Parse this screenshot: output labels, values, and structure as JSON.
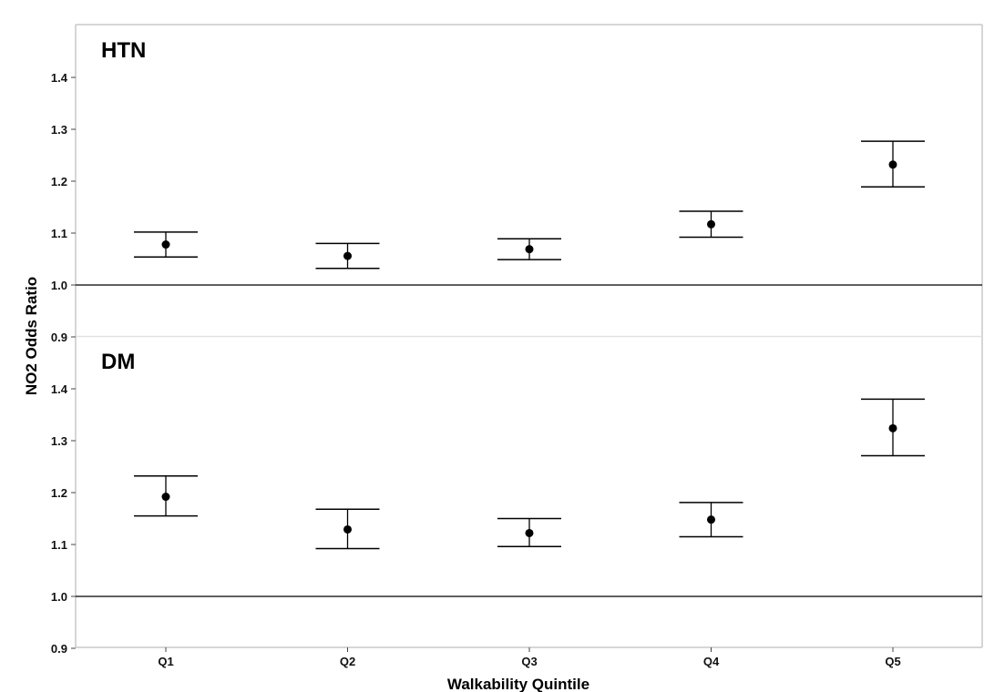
{
  "chart_data": {
    "type": "scatter",
    "subtype": "point-estimate-with-error-bars",
    "xlabel": "Walkability Quintile",
    "ylabel": "NO2 Odds Ratio",
    "categories": [
      "Q1",
      "Q2",
      "Q3",
      "Q4",
      "Q5"
    ],
    "ylim": [
      0.9,
      1.4
    ],
    "yticks": [
      "0.9",
      "1.0",
      "1.1",
      "1.2",
      "1.3",
      "1.4"
    ],
    "reference_line": 1.0,
    "grid": false,
    "legend": "none",
    "panels": [
      {
        "label": "HTN",
        "points": [
          {
            "x": "Q1",
            "y": 1.078,
            "lower": 1.054,
            "upper": 1.102
          },
          {
            "x": "Q2",
            "y": 1.056,
            "lower": 1.032,
            "upper": 1.08
          },
          {
            "x": "Q3",
            "y": 1.069,
            "lower": 1.049,
            "upper": 1.089
          },
          {
            "x": "Q4",
            "y": 1.117,
            "lower": 1.092,
            "upper": 1.142
          },
          {
            "x": "Q5",
            "y": 1.232,
            "lower": 1.189,
            "upper": 1.277
          }
        ]
      },
      {
        "label": "DM",
        "points": [
          {
            "x": "Q1",
            "y": 1.192,
            "lower": 1.155,
            "upper": 1.232
          },
          {
            "x": "Q2",
            "y": 1.129,
            "lower": 1.092,
            "upper": 1.168
          },
          {
            "x": "Q3",
            "y": 1.122,
            "lower": 1.096,
            "upper": 1.15
          },
          {
            "x": "Q4",
            "y": 1.148,
            "lower": 1.115,
            "upper": 1.181
          },
          {
            "x": "Q5",
            "y": 1.324,
            "lower": 1.271,
            "upper": 1.38
          }
        ]
      }
    ],
    "colors": {
      "marker": "#000000",
      "errorbar": "#000000",
      "reference_line": "#000000",
      "frame": "#c8c8c8"
    }
  }
}
